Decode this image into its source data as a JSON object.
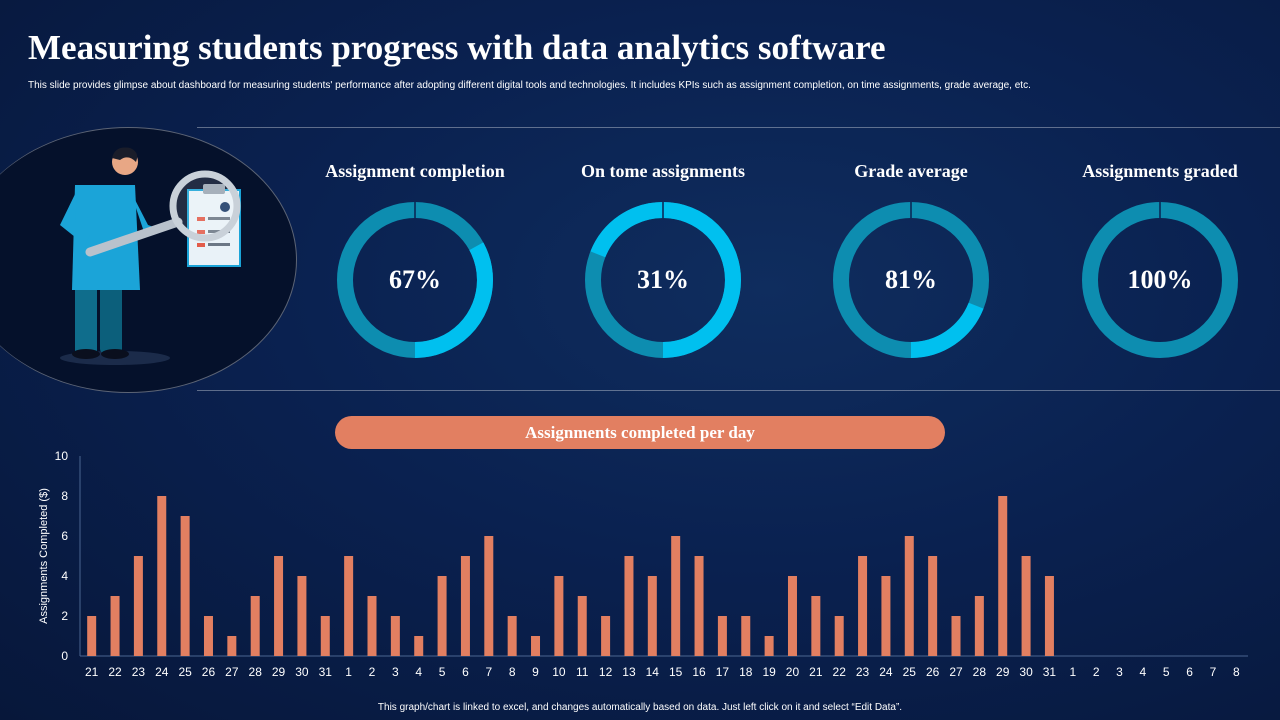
{
  "header": {
    "title": "Measuring students progress with data analytics software",
    "subtitle": "This slide provides glimpse about dashboard for measuring students' performance after adopting different digital tools and technologies. It includes KPIs  such as assignment completion, on time assignments, grade average, etc."
  },
  "colors": {
    "donut_fill": "#00c0ef",
    "donut_track": "#0d8db0",
    "bar": "#e27f61",
    "pill": "#e27f61"
  },
  "kpis": [
    {
      "label": "Assignment completion",
      "value": "67%",
      "fraction": 0.67
    },
    {
      "label": "On tome assignments",
      "value": "31%",
      "fraction": 0.31
    },
    {
      "label": "Grade average",
      "value": "81%",
      "fraction": 0.81
    },
    {
      "label": "Assignments graded",
      "value": "100%",
      "fraction": 1.0
    }
  ],
  "chart_data": {
    "type": "bar",
    "title": "Assignments completed per day",
    "ylabel": "Assignments Completed ($)",
    "xlabel": "",
    "ylim": [
      0,
      10
    ],
    "yticks": [
      0,
      2,
      4,
      6,
      8,
      10
    ],
    "grid": false,
    "categories": [
      "21",
      "22",
      "23",
      "24",
      "25",
      "26",
      "27",
      "28",
      "29",
      "30",
      "31",
      "1",
      "2",
      "3",
      "4",
      "5",
      "6",
      "7",
      "8",
      "9",
      "10",
      "11",
      "12",
      "13",
      "14",
      "15",
      "16",
      "17",
      "18",
      "19",
      "20",
      "21",
      "22",
      "23",
      "24",
      "25",
      "26",
      "27",
      "28",
      "29",
      "30",
      "31",
      "1",
      "2",
      "3",
      "4",
      "5",
      "6",
      "7",
      "8"
    ],
    "values": [
      2,
      3,
      5,
      8,
      7,
      2,
      1,
      3,
      5,
      4,
      2,
      5,
      3,
      2,
      1,
      4,
      5,
      6,
      2,
      1,
      4,
      3,
      2,
      5,
      4,
      6,
      5,
      2,
      2,
      1,
      4,
      3,
      2,
      5,
      4,
      6,
      5,
      2,
      3,
      8,
      5,
      4,
      null,
      null,
      null,
      null,
      null,
      null,
      null,
      null
    ]
  },
  "footnote": "This graph/chart is linked to excel, and changes automatically based on data. Just left click on it and select “Edit Data”."
}
